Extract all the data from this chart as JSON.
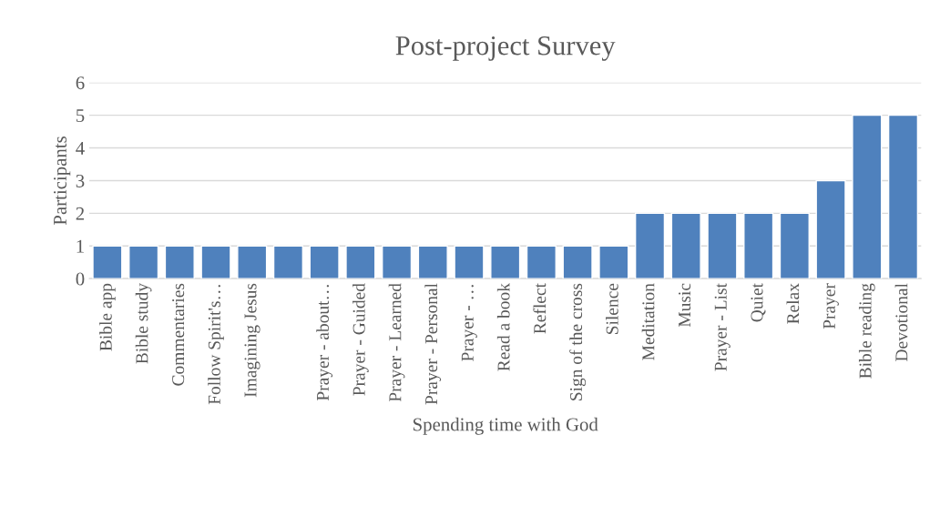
{
  "chart_data": {
    "type": "bar",
    "title": "Post-project Survey",
    "xlabel": "Spending time with God",
    "ylabel": "Participants",
    "categories": [
      "Bible app",
      "Bible study",
      "Commentaries",
      "Follow Spirit's…",
      "Imagining Jesus",
      null,
      "Prayer - about…",
      "Prayer - Guided",
      "Prayer - Learned",
      "Prayer - Personal",
      "Prayer - …",
      "Read a book",
      "Reflect",
      "Sign of the cross",
      "Silence",
      "Meditation",
      "Music",
      "Prayer - List",
      "Quiet",
      "Relax",
      "Prayer",
      "Bible reading",
      "Devotional"
    ],
    "values": [
      1,
      1,
      1,
      1,
      1,
      1,
      1,
      1,
      1,
      1,
      1,
      1,
      1,
      1,
      1,
      2,
      2,
      2,
      2,
      2,
      3,
      5,
      5
    ],
    "color": "#4f81bd",
    "ylim": [
      0,
      6
    ],
    "yticks": [
      0,
      1,
      2,
      3,
      4,
      5,
      6
    ],
    "grid": "y",
    "legend": false
  }
}
